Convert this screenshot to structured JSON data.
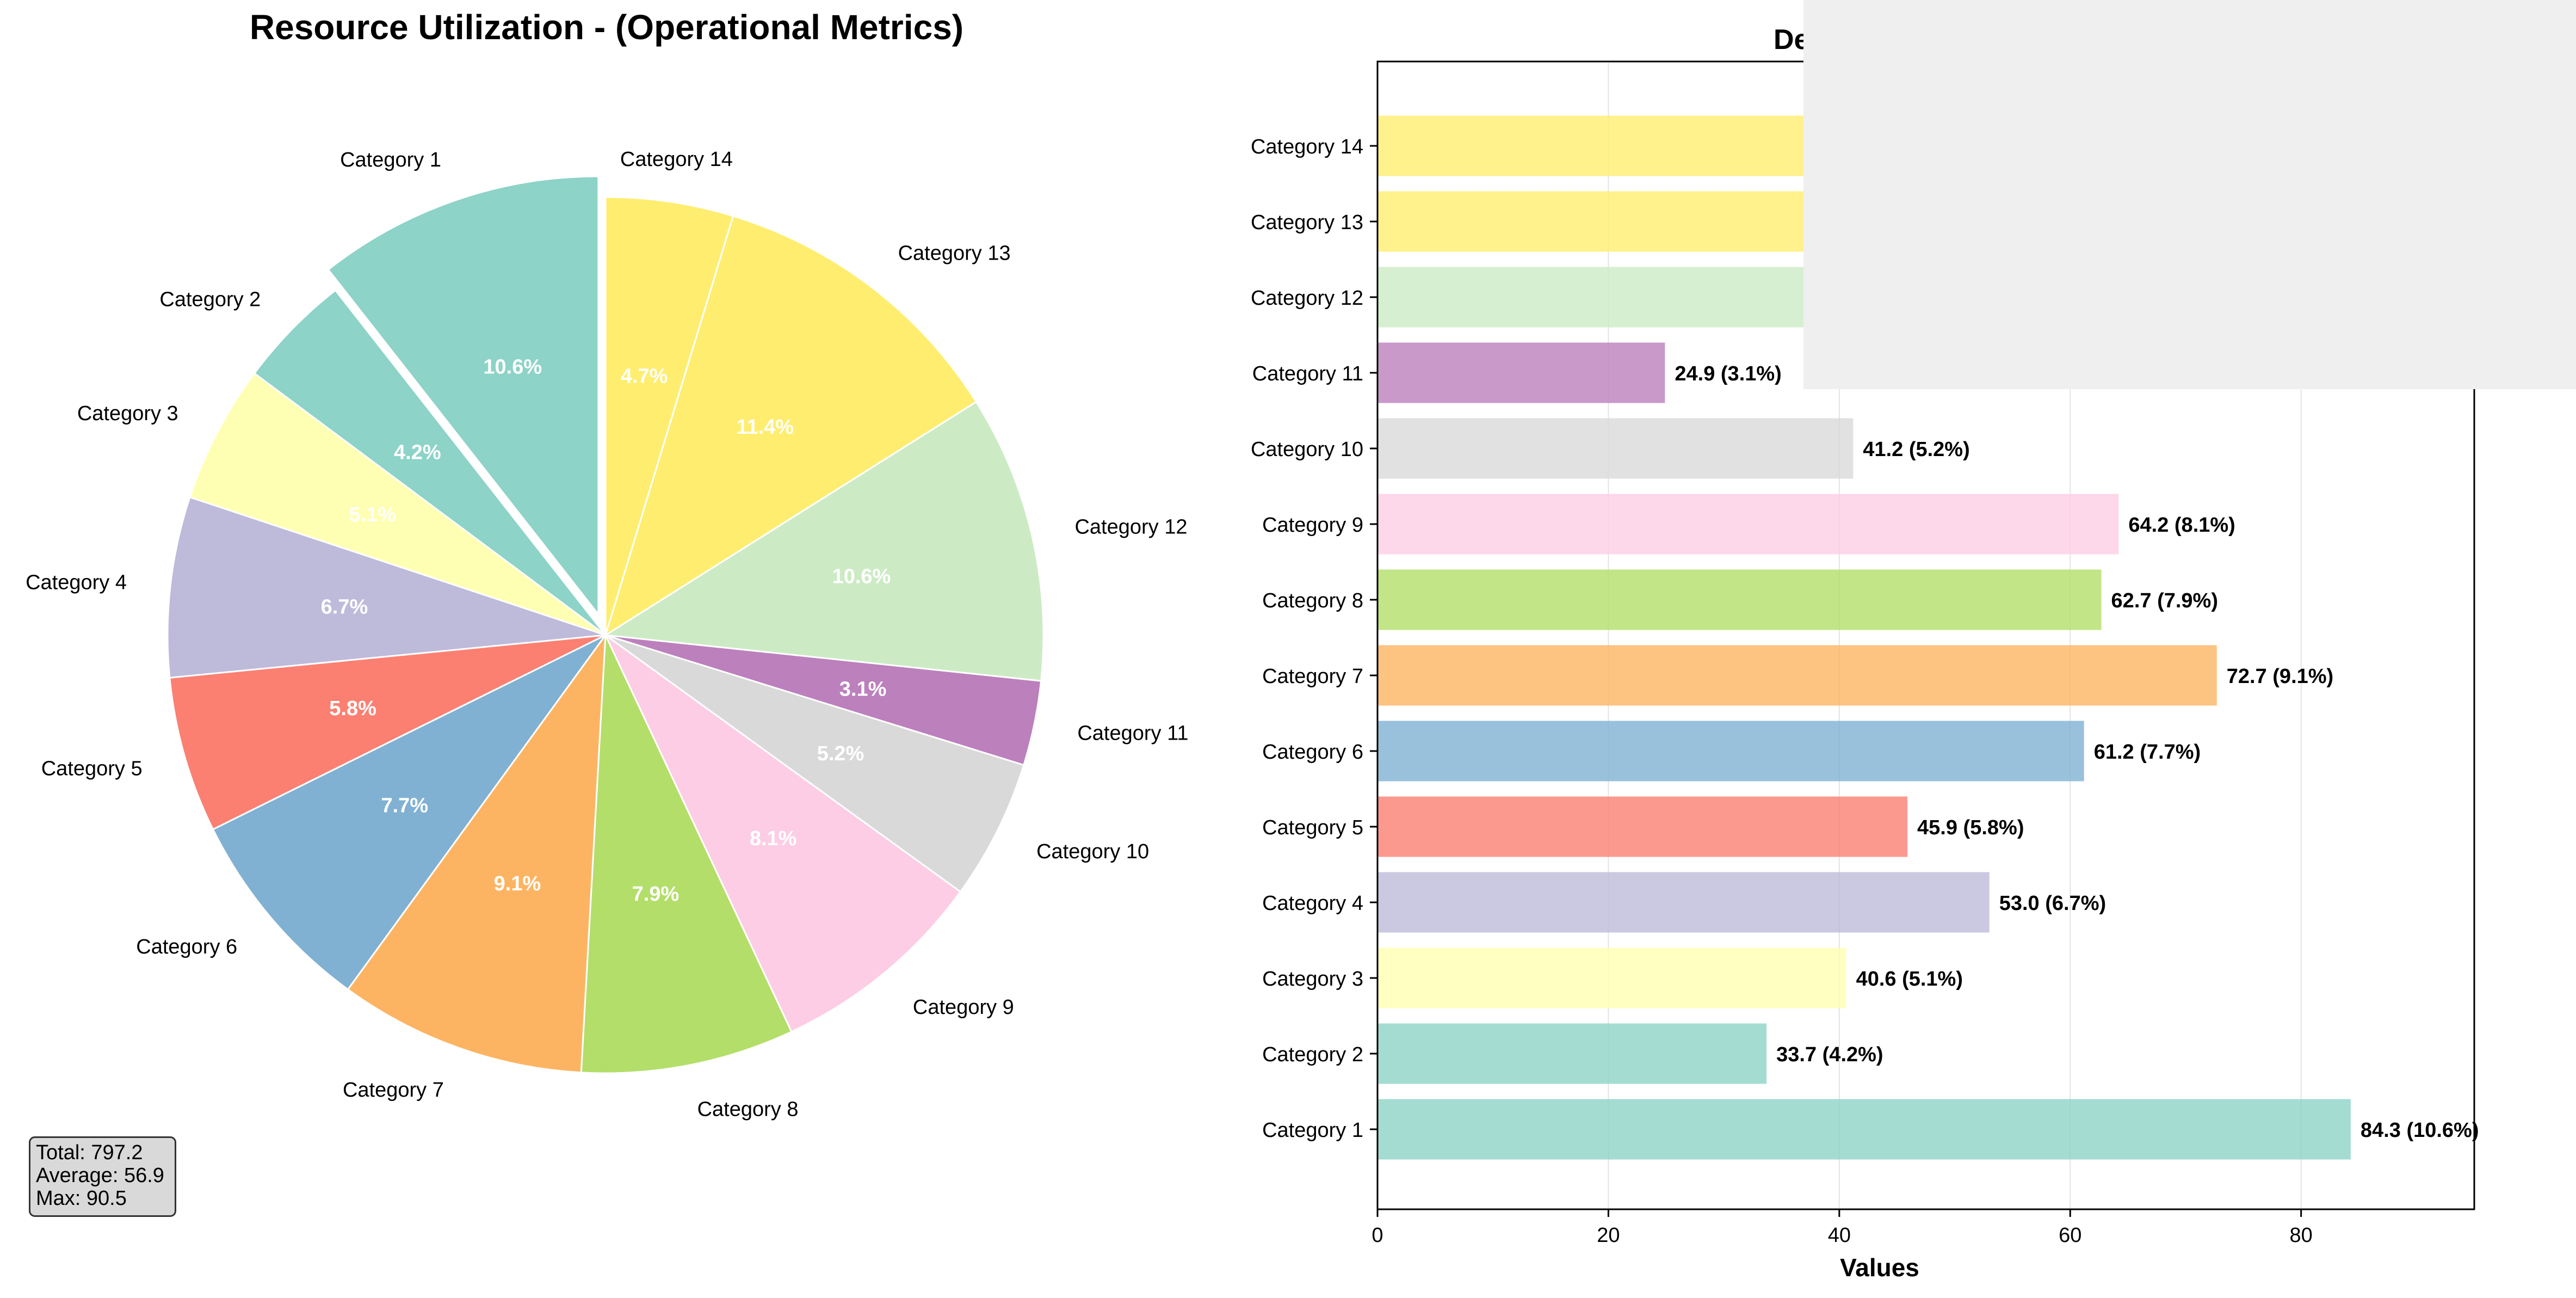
{
  "pie": {
    "title": "Resource Utilization - (Operational Metrics)",
    "stats": {
      "total": "Total: 797.2",
      "average": "Average: 56.9",
      "max": "Max: 90.5"
    }
  },
  "bar": {
    "title": "De",
    "xlabel": "Values",
    "xticks": [
      "0",
      "20",
      "40",
      "60",
      "80"
    ]
  },
  "chart_data": [
    {
      "type": "pie",
      "title": "Resource Utilization - (Operational Metrics)",
      "start_angle": "90 degrees, counterclockwise",
      "exploded": [
        "Category 1"
      ],
      "categories": [
        "Category 1",
        "Category 2",
        "Category 3",
        "Category 4",
        "Category 5",
        "Category 6",
        "Category 7",
        "Category 8",
        "Category 9",
        "Category 10",
        "Category 11",
        "Category 12",
        "Category 13",
        "Category 14"
      ],
      "percent_labels": [
        "10.6%",
        "4.2%",
        "5.1%",
        "6.7%",
        "5.8%",
        "7.7%",
        "9.1%",
        "7.9%",
        "8.1%",
        "5.2%",
        "3.1%",
        "10.6%",
        "11.4%",
        "4.7%"
      ],
      "values": [
        84.3,
        33.7,
        40.6,
        53.0,
        45.9,
        61.2,
        72.7,
        62.7,
        64.2,
        41.2,
        24.9,
        84.5,
        90.5,
        37.5
      ],
      "colors": [
        "#8dd3c7",
        "#8dd3c7",
        "#ffffb3",
        "#bebada",
        "#fb8072",
        "#80b1d3",
        "#fdb462",
        "#b3de69",
        "#fccde5",
        "#d9d9d9",
        "#bc80bd",
        "#ccebc5",
        "#ffed6f",
        "#ffed6f"
      ],
      "stats": {
        "total": 797.2,
        "average": 56.9,
        "max": 90.5
      }
    },
    {
      "type": "bar",
      "orientation": "horizontal",
      "title": "De",
      "xlabel": "Values",
      "xlim": [
        0,
        95
      ],
      "grid": "vertical",
      "categories": [
        "Category 1",
        "Category 2",
        "Category 3",
        "Category 4",
        "Category 5",
        "Category 6",
        "Category 7",
        "Category 8",
        "Category 9",
        "Category 10",
        "Category 11",
        "Category 12",
        "Category 13",
        "Category 14"
      ],
      "values": [
        84.3,
        33.7,
        40.6,
        53.0,
        45.9,
        61.2,
        72.7,
        62.7,
        64.2,
        41.2,
        24.9,
        84.5,
        90.5,
        37.5
      ],
      "value_labels": [
        "84.3 (10.6%)",
        "33.7 (4.2%)",
        "40.6 (5.1%)",
        "53.0 (6.7%)",
        "45.9 (5.8%)",
        "61.2 (7.7%)",
        "72.7 (9.1%)",
        "62.7 (7.9%)",
        "64.2 (8.1%)",
        "41.2 (5.2%)",
        "24.9 (3.1%)",
        "",
        "",
        ""
      ],
      "colors": [
        "#8dd3c7",
        "#8dd3c7",
        "#ffffb3",
        "#bebada",
        "#fb8072",
        "#80b1d3",
        "#fdb462",
        "#b3de69",
        "#fccde5",
        "#d9d9d9",
        "#bc80bd",
        "#ccebc5",
        "#ffed6f",
        "#ffed6f"
      ]
    }
  ]
}
